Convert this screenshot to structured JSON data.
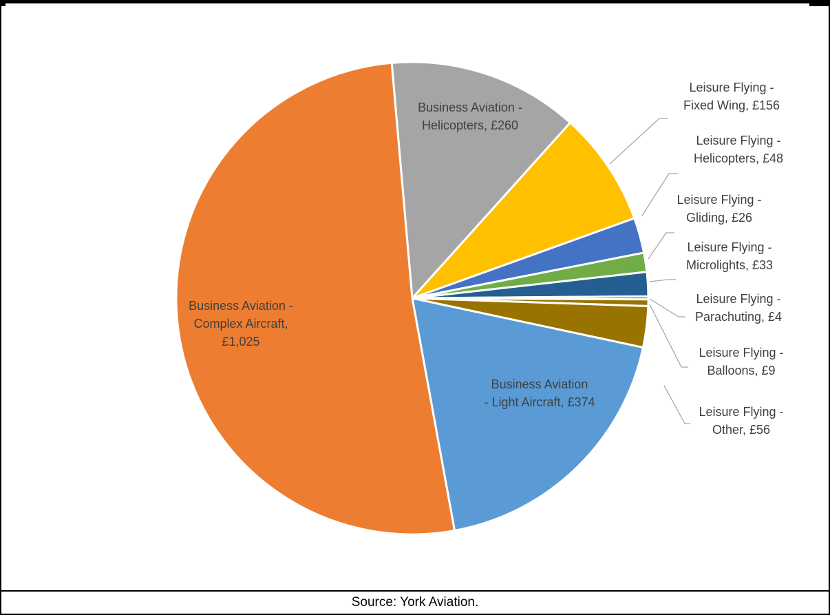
{
  "chart_data": {
    "type": "pie",
    "title": "",
    "slices": [
      {
        "label_lines": [
          "Business Aviation -",
          "Complex Aircraft,",
          "£1,025"
        ],
        "value": 1025,
        "color": "#ED7D31"
      },
      {
        "label_lines": [
          "Business Aviation -",
          "Helicopters, £260"
        ],
        "value": 260,
        "color": "#A5A5A5"
      },
      {
        "label_lines": [
          "Leisure Flying -",
          "Fixed Wing, £156"
        ],
        "value": 156,
        "color": "#FFC000"
      },
      {
        "label_lines": [
          "Leisure Flying -",
          "Helicopters, £48"
        ],
        "value": 48,
        "color": "#4472C4"
      },
      {
        "label_lines": [
          "Leisure Flying -",
          "Gliding, £26"
        ],
        "value": 26,
        "color": "#70AD47"
      },
      {
        "label_lines": [
          "Leisure Flying -",
          "Microlights, £33"
        ],
        "value": 33,
        "color": "#255E91"
      },
      {
        "label_lines": [
          "Leisure Flying -",
          "Parachuting, £4"
        ],
        "value": 4,
        "color": "#636363"
      },
      {
        "label_lines": [
          "Leisure Flying -",
          "Balloons, £9"
        ],
        "value": 9,
        "color": "#997300"
      },
      {
        "label_lines": [
          "Leisure Flying -",
          "Other, £56"
        ],
        "value": 56,
        "color": "#997300"
      },
      {
        "label_lines": [
          "Business Aviation",
          "- Light Aircraft, £374"
        ],
        "value": 374,
        "color": "#5B9BD5"
      }
    ]
  },
  "source": "Source: York Aviation."
}
